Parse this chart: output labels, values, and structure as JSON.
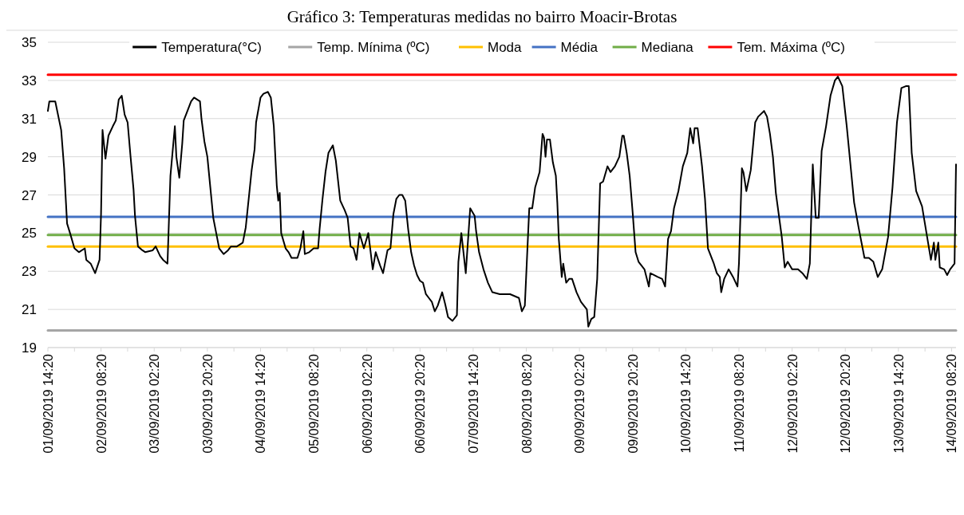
{
  "chart_data": {
    "type": "line",
    "title": "Gráfico 3: Temperaturas medidas no bairro Moacir-Brotas",
    "ylim": [
      19,
      35
    ],
    "yticks": [
      19,
      21,
      23,
      25,
      27,
      29,
      31,
      33,
      35
    ],
    "xlim": [
      "2019-09-01T14:20",
      "2019-09-14T09:50"
    ],
    "xticks": [
      {
        "value": "2019-09-01T14:20",
        "label": "01/09/2019 14:20"
      },
      {
        "value": "2019-09-01T23:20",
        "label": null
      },
      {
        "value": "2019-09-02T08:20",
        "label": "02/09/2019 08:20"
      },
      {
        "value": "2019-09-02T17:20",
        "label": null
      },
      {
        "value": "2019-09-03T02:20",
        "label": "03/09/2019 02:20"
      },
      {
        "value": "2019-09-03T11:20",
        "label": null
      },
      {
        "value": "2019-09-03T20:20",
        "label": "03/09/2019 20:20"
      },
      {
        "value": "2019-09-04T05:20",
        "label": null
      },
      {
        "value": "2019-09-04T14:20",
        "label": "04/09/2019 14:20"
      },
      {
        "value": "2019-09-04T23:20",
        "label": null
      },
      {
        "value": "2019-09-05T08:20",
        "label": "05/09/2019 08:20"
      },
      {
        "value": "2019-09-05T17:20",
        "label": null
      },
      {
        "value": "2019-09-06T02:20",
        "label": "06/09/2019 02:20"
      },
      {
        "value": "2019-09-06T11:20",
        "label": null
      },
      {
        "value": "2019-09-06T20:20",
        "label": "06/09/2019 20:20"
      },
      {
        "value": "2019-09-07T05:20",
        "label": null
      },
      {
        "value": "2019-09-07T14:20",
        "label": "07/09/2019 14:20"
      },
      {
        "value": "2019-09-07T23:20",
        "label": null
      },
      {
        "value": "2019-09-08T08:20",
        "label": "08/09/2019 08:20"
      },
      {
        "value": "2019-09-08T17:20",
        "label": null
      },
      {
        "value": "2019-09-09T02:20",
        "label": "09/09/2019 02:20"
      },
      {
        "value": "2019-09-09T11:20",
        "label": null
      },
      {
        "value": "2019-09-09T20:20",
        "label": "09/09/2019 20:20"
      },
      {
        "value": "2019-09-10T05:20",
        "label": null
      },
      {
        "value": "2019-09-10T14:20",
        "label": "10/09/2019 14:20"
      },
      {
        "value": "2019-09-10T23:20",
        "label": null
      },
      {
        "value": "2019-09-11T08:20",
        "label": "11/09/2019 08:20"
      },
      {
        "value": "2019-09-11T17:20",
        "label": null
      },
      {
        "value": "2019-09-12T02:20",
        "label": "12/09/2019 02:20"
      },
      {
        "value": "2019-09-12T11:20",
        "label": null
      },
      {
        "value": "2019-09-12T20:20",
        "label": "12/09/2019 20:20"
      },
      {
        "value": "2019-09-13T05:20",
        "label": null
      },
      {
        "value": "2019-09-13T14:20",
        "label": "13/09/2019 14:20"
      },
      {
        "value": "2019-09-13T23:20",
        "label": null
      },
      {
        "value": "2019-09-14T08:20",
        "label": "14/09/2019 08:20"
      }
    ],
    "grid": "y",
    "legend": "top",
    "marker": "none",
    "line_style": "solid",
    "series": [
      {
        "name": "Temperatura(°C)",
        "color": "#000000",
        "x": [
          "2019-09-01T14:20",
          "2019-09-01T14:50",
          "2019-09-01T16:50",
          "2019-09-01T18:50",
          "2019-09-01T19:50",
          "2019-09-01T20:50",
          "2019-09-01T21:50",
          "2019-09-01T23:20",
          "2019-09-02T00:50",
          "2019-09-02T02:50",
          "2019-09-02T03:20",
          "2019-09-02T04:50",
          "2019-09-02T06:20",
          "2019-09-02T07:50",
          "2019-09-02T08:20",
          "2019-09-02T08:50",
          "2019-09-02T09:50",
          "2019-09-02T10:50",
          "2019-09-02T12:20",
          "2019-09-02T13:20",
          "2019-09-02T14:20",
          "2019-09-02T15:20",
          "2019-09-02T16:20",
          "2019-09-02T17:20",
          "2019-09-02T18:20",
          "2019-09-02T19:20",
          "2019-09-02T19:50",
          "2019-09-02T20:50",
          "2019-09-02T22:20",
          "2019-09-02T23:20",
          "2019-09-03T01:50",
          "2019-09-03T02:50",
          "2019-09-03T04:20",
          "2019-09-03T05:20",
          "2019-09-03T06:50",
          "2019-09-03T07:50",
          "2019-09-03T09:20",
          "2019-09-03T09:50",
          "2019-09-03T10:50",
          "2019-09-03T11:50",
          "2019-09-03T12:20",
          "2019-09-03T13:20",
          "2019-09-03T14:50",
          "2019-09-03T15:50",
          "2019-09-03T17:50",
          "2019-09-03T18:20",
          "2019-09-03T19:20",
          "2019-09-03T20:20",
          "2019-09-03T21:20",
          "2019-09-03T22:20",
          "2019-09-03T23:20",
          "2019-09-04T00:20",
          "2019-09-04T01:50",
          "2019-09-04T03:20",
          "2019-09-04T04:20",
          "2019-09-04T06:20",
          "2019-09-04T08:20",
          "2019-09-04T09:20",
          "2019-09-04T10:20",
          "2019-09-04T11:20",
          "2019-09-04T12:20",
          "2019-09-04T12:50",
          "2019-09-04T14:20",
          "2019-09-04T15:20",
          "2019-09-04T16:50",
          "2019-09-04T17:50",
          "2019-09-04T18:50",
          "2019-09-04T19:50",
          "2019-09-04T20:20",
          "2019-09-04T20:50",
          "2019-09-04T21:20",
          "2019-09-04T22:50",
          "2019-09-04T23:50",
          "2019-09-05T00:50",
          "2019-09-05T02:50",
          "2019-09-05T03:50",
          "2019-09-05T04:50",
          "2019-09-05T05:20",
          "2019-09-05T06:50",
          "2019-09-05T08:20",
          "2019-09-05T09:50",
          "2019-09-05T10:20",
          "2019-09-05T11:20",
          "2019-09-05T12:20",
          "2019-09-05T13:20",
          "2019-09-05T14:50",
          "2019-09-05T15:50",
          "2019-09-05T17:20",
          "2019-09-05T18:50",
          "2019-09-05T19:50",
          "2019-09-05T20:50",
          "2019-09-05T21:50",
          "2019-09-05T22:50",
          "2019-09-05T23:50",
          "2019-09-06T01:20",
          "2019-09-06T02:50",
          "2019-09-06T04:20",
          "2019-09-06T05:20",
          "2019-09-06T06:50",
          "2019-09-06T07:50",
          "2019-09-06T09:20",
          "2019-09-06T10:20",
          "2019-09-06T11:20",
          "2019-09-06T12:20",
          "2019-09-06T13:20",
          "2019-09-06T14:20",
          "2019-09-06T15:20",
          "2019-09-06T16:20",
          "2019-09-06T17:20",
          "2019-09-06T18:20",
          "2019-09-06T19:20",
          "2019-09-06T20:20",
          "2019-09-06T21:20",
          "2019-09-06T22:20",
          "2019-09-06T23:20",
          "2019-09-07T00:20",
          "2019-09-07T01:20",
          "2019-09-07T02:20",
          "2019-09-07T03:50",
          "2019-09-07T04:50",
          "2019-09-07T05:50",
          "2019-09-07T07:20",
          "2019-09-07T08:50",
          "2019-09-07T09:20",
          "2019-09-07T10:20",
          "2019-09-07T11:50",
          "2019-09-07T13:20",
          "2019-09-07T14:50",
          "2019-09-07T15:20",
          "2019-09-07T16:20",
          "2019-09-07T17:50",
          "2019-09-07T19:20",
          "2019-09-07T20:50",
          "2019-09-07T23:20",
          "2019-09-08T02:50",
          "2019-09-08T05:50",
          "2019-09-08T06:50",
          "2019-09-08T07:50",
          "2019-09-08T09:20",
          "2019-09-08T10:20",
          "2019-09-08T11:20",
          "2019-09-08T12:50",
          "2019-09-08T13:50",
          "2019-09-08T14:20",
          "2019-09-08T14:50",
          "2019-09-08T15:20",
          "2019-09-08T16:20",
          "2019-09-08T17:20",
          "2019-09-08T18:20",
          "2019-09-08T18:50",
          "2019-09-08T19:20",
          "2019-09-08T20:20",
          "2019-09-08T20:50",
          "2019-09-08T21:50",
          "2019-09-08T22:50",
          "2019-09-08T23:50",
          "2019-09-09T01:20",
          "2019-09-09T02:50",
          "2019-09-09T04:50",
          "2019-09-09T05:20",
          "2019-09-09T06:20",
          "2019-09-09T07:20",
          "2019-09-09T08:20",
          "2019-09-09T09:20",
          "2019-09-09T10:20",
          "2019-09-09T11:50",
          "2019-09-09T12:50",
          "2019-09-09T14:20",
          "2019-09-09T15:50",
          "2019-09-09T16:50",
          "2019-09-09T17:20",
          "2019-09-09T18:20",
          "2019-09-09T19:20",
          "2019-09-09T20:20",
          "2019-09-09T21:20",
          "2019-09-09T22:20",
          "2019-09-10T00:20",
          "2019-09-10T01:50",
          "2019-09-10T02:20",
          "2019-09-10T04:50",
          "2019-09-10T06:20",
          "2019-09-10T07:20",
          "2019-09-10T08:20",
          "2019-09-10T09:20",
          "2019-09-10T10:20",
          "2019-09-10T11:50",
          "2019-09-10T13:20",
          "2019-09-10T14:50",
          "2019-09-10T15:50",
          "2019-09-10T16:50",
          "2019-09-10T17:20",
          "2019-09-10T18:20",
          "2019-09-10T19:50",
          "2019-09-10T20:50",
          "2019-09-10T21:50",
          "2019-09-10T23:50",
          "2019-09-11T00:50",
          "2019-09-11T01:50",
          "2019-09-11T02:20",
          "2019-09-11T03:20",
          "2019-09-11T04:50",
          "2019-09-11T06:20",
          "2019-09-11T07:50",
          "2019-09-11T08:20",
          "2019-09-11T09:20",
          "2019-09-11T09:50",
          "2019-09-11T10:50",
          "2019-09-11T12:20",
          "2019-09-11T13:50",
          "2019-09-11T14:50",
          "2019-09-11T16:50",
          "2019-09-11T17:50",
          "2019-09-11T18:50",
          "2019-09-11T19:50",
          "2019-09-11T20:50",
          "2019-09-11T22:50",
          "2019-09-11T23:50",
          "2019-09-12T00:50",
          "2019-09-12T02:20",
          "2019-09-12T04:20",
          "2019-09-12T05:50",
          "2019-09-12T07:20",
          "2019-09-12T08:20",
          "2019-09-12T09:20",
          "2019-09-12T10:20",
          "2019-09-12T11:20",
          "2019-09-12T12:20",
          "2019-09-12T13:50",
          "2019-09-12T15:20",
          "2019-09-12T16:50",
          "2019-09-12T17:50",
          "2019-09-12T19:20",
          "2019-09-12T20:50",
          "2019-09-12T22:20",
          "2019-09-12T23:20",
          "2019-09-13T00:50",
          "2019-09-13T02:50",
          "2019-09-13T04:20",
          "2019-09-13T05:50",
          "2019-09-13T07:20",
          "2019-09-13T08:50",
          "2019-09-13T10:50",
          "2019-09-13T12:20",
          "2019-09-13T13:50",
          "2019-09-13T15:20",
          "2019-09-13T16:50",
          "2019-09-13T17:50",
          "2019-09-13T18:50",
          "2019-09-13T20:20",
          "2019-09-13T22:20",
          "2019-09-13T23:50",
          "2019-09-14T01:20",
          "2019-09-14T02:20",
          "2019-09-14T02:50",
          "2019-09-14T03:50",
          "2019-09-14T04:20",
          "2019-09-14T05:50",
          "2019-09-14T06:50",
          "2019-09-14T07:50",
          "2019-09-14T09:20",
          "2019-09-14T09:50"
        ],
        "values": [
          31.4,
          31.9,
          31.9,
          30.4,
          28.4,
          25.5,
          25.0,
          24.2,
          24.0,
          24.2,
          23.6,
          23.4,
          22.9,
          23.6,
          26.0,
          30.4,
          28.9,
          30.1,
          30.6,
          30.9,
          32.0,
          32.2,
          31.2,
          30.8,
          29.0,
          27.3,
          25.9,
          24.3,
          24.1,
          24.0,
          24.1,
          24.3,
          23.8,
          23.6,
          23.4,
          28.0,
          30.6,
          29.0,
          27.9,
          29.7,
          30.9,
          31.3,
          31.9,
          32.1,
          31.9,
          31.0,
          29.8,
          29.0,
          27.4,
          25.8,
          25.0,
          24.2,
          23.9,
          24.1,
          24.3,
          24.3,
          24.5,
          25.3,
          26.8,
          28.3,
          29.4,
          30.8,
          32.1,
          32.3,
          32.4,
          32.1,
          30.6,
          27.5,
          26.7,
          27.1,
          25.0,
          24.2,
          24.0,
          23.7,
          23.7,
          24.2,
          25.1,
          23.9,
          24.0,
          24.2,
          24.2,
          25.2,
          26.8,
          28.2,
          29.2,
          29.6,
          28.8,
          26.7,
          26.2,
          25.8,
          24.3,
          24.2,
          23.6,
          25.0,
          24.2,
          25.0,
          23.1,
          24.0,
          23.3,
          22.9,
          24.1,
          24.2,
          26.0,
          26.8,
          27.0,
          27.0,
          26.7,
          25.2,
          24.0,
          23.3,
          22.8,
          22.5,
          22.4,
          21.8,
          21.6,
          21.4,
          20.9,
          21.2,
          21.9,
          21.3,
          20.6,
          20.4,
          20.7,
          23.5,
          25.0,
          22.9,
          26.3,
          25.9,
          25.1,
          24.0,
          23.1,
          22.4,
          21.9,
          21.8,
          21.8,
          21.6,
          20.9,
          21.2,
          26.3,
          26.3,
          27.4,
          28.2,
          30.2,
          30.0,
          29.0,
          29.9,
          29.9,
          28.7,
          28.0,
          26.6,
          24.7,
          22.7,
          23.4,
          22.4,
          22.6,
          22.6,
          21.9,
          21.4,
          21.0,
          20.1,
          20.5,
          20.6,
          22.6,
          27.6,
          27.7,
          28.5,
          28.2,
          28.5,
          29.0,
          30.1,
          30.1,
          29.2,
          28.0,
          26.1,
          24.0,
          23.5,
          23.1,
          22.2,
          22.9,
          22.7,
          22.6,
          22.2,
          24.7,
          25.1,
          26.3,
          27.2,
          28.5,
          29.2,
          30.5,
          29.7,
          30.5,
          30.5,
          28.5,
          26.8,
          24.2,
          23.4,
          22.9,
          22.7,
          21.9,
          22.6,
          23.1,
          22.7,
          22.2,
          23.4,
          28.4,
          28.2,
          27.2,
          28.3,
          30.8,
          31.1,
          31.4,
          31.1,
          30.2,
          29.0,
          27.1,
          24.8,
          23.2,
          23.5,
          23.1,
          23.1,
          22.9,
          22.6,
          23.4,
          28.6,
          25.8,
          25.8,
          29.3,
          30.6,
          32.2,
          33.0,
          33.2,
          32.7,
          30.6,
          28.2,
          26.6,
          25.3,
          23.7,
          23.7,
          23.5,
          22.7,
          23.1,
          24.8,
          27.4,
          30.8,
          32.6,
          32.7,
          32.7,
          29.2,
          27.2,
          26.4,
          25.0,
          23.6,
          24.5,
          23.6,
          24.5,
          23.2,
          23.1,
          22.8,
          23.1,
          23.4,
          28.6
        ]
      },
      {
        "name": "Temp. Mínima (ºC)",
        "color": "#a5a5a5",
        "x": [
          "2019-09-01T14:20",
          "2019-09-14T09:50"
        ],
        "values": [
          19.9,
          19.9
        ]
      },
      {
        "name": "Moda",
        "color": "#ffc000",
        "x": [
          "2019-09-01T14:20",
          "2019-09-14T09:50"
        ],
        "values": [
          24.3,
          24.3
        ]
      },
      {
        "name": "Média",
        "color": "#4472c4",
        "x": [
          "2019-09-01T14:20",
          "2019-09-14T09:50"
        ],
        "values": [
          25.85,
          25.85
        ]
      },
      {
        "name": "Mediana",
        "color": "#70ad47",
        "x": [
          "2019-09-01T14:20",
          "2019-09-14T09:50"
        ],
        "values": [
          24.9,
          24.9
        ]
      },
      {
        "name": "Tem. Máxima (ºC)",
        "color": "#ff0000",
        "x": [
          "2019-09-01T14:20",
          "2019-09-14T09:50"
        ],
        "values": [
          33.3,
          33.3
        ]
      }
    ]
  }
}
